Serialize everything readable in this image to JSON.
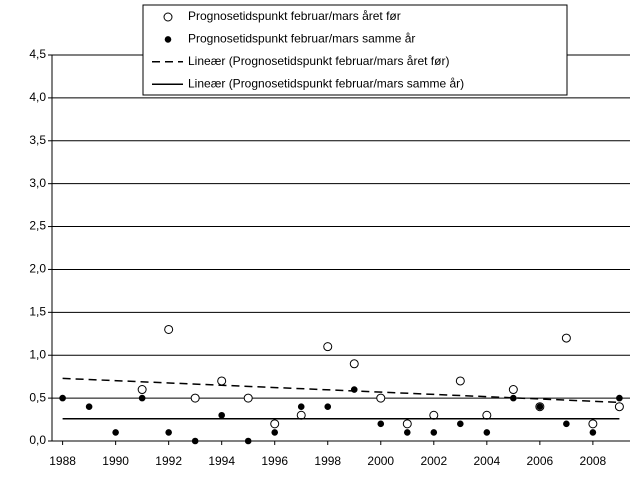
{
  "chart_data": {
    "type": "scatter",
    "xlim": [
      1987.6,
      2009.4
    ],
    "xticks": [
      1988,
      1990,
      1992,
      1994,
      1996,
      1998,
      2000,
      2002,
      2004,
      2006,
      2008
    ],
    "ylim": [
      0,
      4.5
    ],
    "yticks": [
      {
        "value": 0,
        "label": "0,0"
      },
      {
        "value": 0.5,
        "label": "0,5"
      },
      {
        "value": 1,
        "label": "1,0"
      },
      {
        "value": 1.5,
        "label": "1,5"
      },
      {
        "value": 2,
        "label": "2,0"
      },
      {
        "value": 2.5,
        "label": "2,5"
      },
      {
        "value": 3,
        "label": "3,0"
      },
      {
        "value": 3.5,
        "label": "3,5"
      },
      {
        "value": 4,
        "label": "4,0"
      },
      {
        "value": 4.5,
        "label": "4,5"
      }
    ],
    "grid": true,
    "legend": "top",
    "series": [
      {
        "name": "Prognosetidspunkt februar/mars året før",
        "color": "#000000",
        "marker": "open",
        "x": [
          1991,
          1992,
          1993,
          1994,
          1995,
          1996,
          1997,
          1998,
          1999,
          2000,
          2001,
          2002,
          2003,
          2004,
          2005,
          2006,
          2007,
          2008,
          2009
        ],
        "values": [
          0.6,
          1.3,
          0.5,
          0.7,
          0.5,
          0.2,
          0.3,
          1.1,
          0.9,
          0.5,
          0.2,
          0.3,
          0.7,
          0.3,
          0.6,
          0.4,
          1.2,
          0.2,
          0.4
        ]
      },
      {
        "name": "Prognosetidspunkt februar/mars samme år",
        "color": "#000000",
        "marker": "filled",
        "x": [
          1988,
          1989,
          1990,
          1991,
          1992,
          1993,
          1994,
          1995,
          1996,
          1997,
          1998,
          1999,
          2000,
          2001,
          2002,
          2003,
          2004,
          2005,
          2006,
          2007,
          2008,
          2009
        ],
        "values": [
          0.5,
          0.4,
          0.1,
          0.5,
          0.1,
          0.0,
          0.3,
          0.0,
          0.1,
          0.4,
          0.4,
          0.6,
          0.2,
          0.1,
          0.1,
          0.2,
          0.1,
          0.5,
          0.4,
          0.2,
          0.1,
          0.5
        ]
      },
      {
        "name": "Lineær (Prognosetidspunkt februar/mars året før)",
        "color": "#000000",
        "line": "dashed",
        "x": [
          1988,
          2009
        ],
        "values": [
          0.73,
          0.45
        ]
      },
      {
        "name": "Lineær (Prognosetidspunkt februar/mars samme år)",
        "color": "#000000",
        "line": "solid",
        "x": [
          1988,
          2009
        ],
        "values": [
          0.26,
          0.26
        ]
      }
    ]
  }
}
